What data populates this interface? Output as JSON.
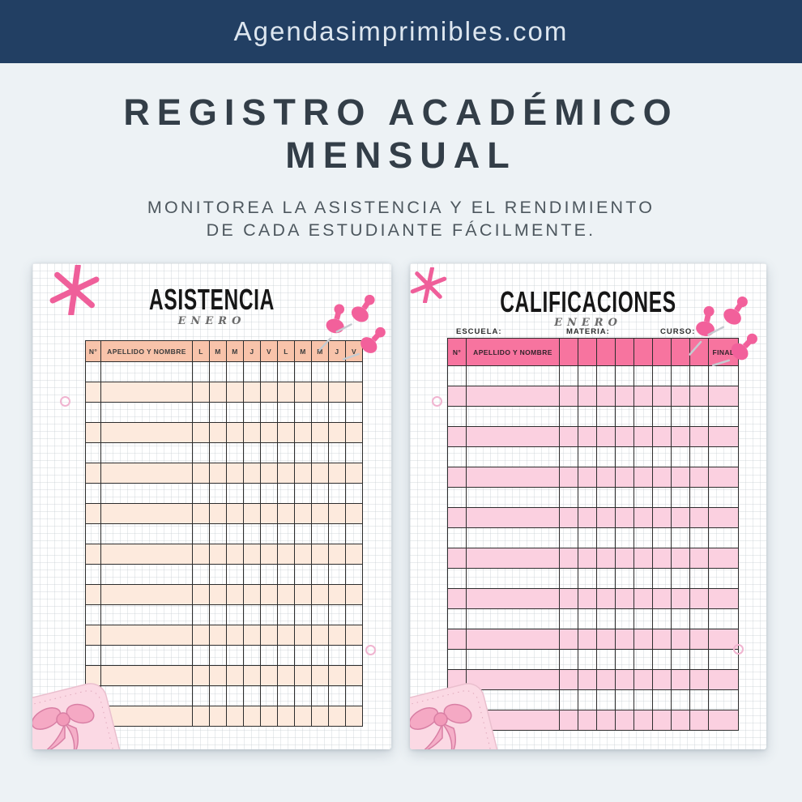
{
  "brand_bar": {
    "text": "Agendasimprimibles.com"
  },
  "hero": {
    "title_lines": [
      "REGISTRO ACADÉMICO",
      "MENSUAL"
    ],
    "subtitle_lines": [
      "MONITOREA LA ASISTENCIA Y EL RENDIMIENTO",
      "DE CADA ESTUDIANTE FÁCILMENTE."
    ]
  },
  "asistencia": {
    "title": "ASISTENCIA",
    "month": "ENERO",
    "num_header": "N°",
    "name_header": "APELLIDO Y NOMBRE",
    "day_headers": [
      "L",
      "M",
      "M",
      "J",
      "V",
      "L",
      "M",
      "M",
      "J",
      "V"
    ],
    "row_count": 18
  },
  "calificaciones": {
    "title": "CALIFICACIONES",
    "month": "ENERO",
    "fields": {
      "escuela": "ESCUELA:",
      "materia": "MATERIA:",
      "curso": "CURSO:"
    },
    "num_header": "N°",
    "name_header": "APELLIDO Y NOMBRE",
    "blank_column_count": 8,
    "final_header": "FINAL",
    "row_count": 18
  },
  "colors": {
    "brand_navy": "#223f63",
    "background": "#edf2f5",
    "asistencia_header": "#f8c3aa",
    "asistencia_row": "#fdeadd",
    "calificaciones_header": "#f7749f",
    "calificaciones_row": "#fbd0e0",
    "accent_pink": "#ef5f9a"
  }
}
